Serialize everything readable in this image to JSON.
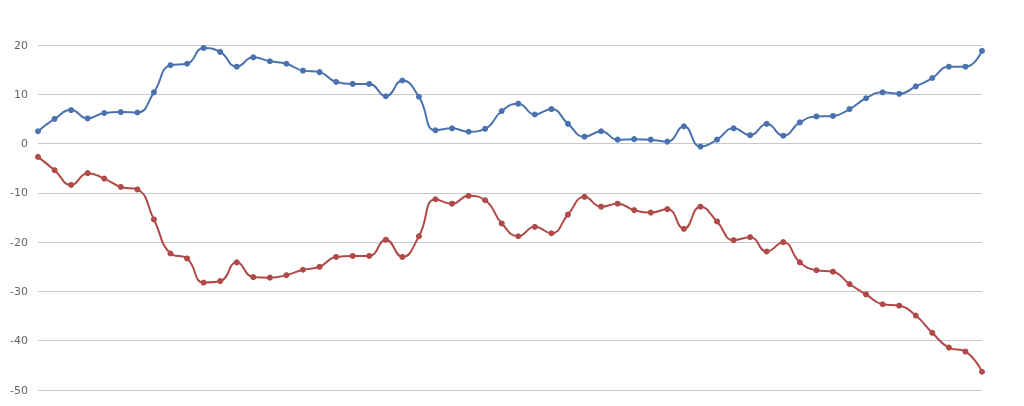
{
  "chart_data": {
    "type": "line",
    "categories": [
      null,
      null,
      null,
      null,
      null,
      null,
      null,
      null,
      null,
      null,
      null,
      null,
      null,
      null,
      null,
      null,
      null,
      null,
      null,
      null,
      null,
      null,
      null,
      null,
      null,
      null,
      null,
      null,
      null,
      null,
      null,
      null,
      null,
      null,
      null,
      null,
      null,
      null,
      null,
      null,
      null,
      null,
      null,
      null,
      null,
      null,
      null,
      null,
      null,
      null,
      null,
      null,
      null,
      null,
      null,
      null,
      null,
      null
    ],
    "series": [
      {
        "color": "#4a72ae",
        "values": [
          2.5,
          5.0,
          6.8,
          5.1,
          6.2,
          6.4,
          6.3,
          10.4,
          15.9,
          16.2,
          19.4,
          18.6,
          15.6,
          17.5,
          16.7,
          16.2,
          14.8,
          14.5,
          12.5,
          12.1,
          12.1,
          9.6,
          12.8,
          9.5,
          2.7,
          3.1,
          2.4,
          3.0,
          6.6,
          8.1,
          5.9,
          7.0,
          4.0,
          1.4,
          2.5,
          0.8,
          0.9,
          0.8,
          0.4,
          3.5,
          -0.6,
          0.8,
          3.1,
          1.7,
          4.0,
          1.6,
          4.3,
          5.5,
          5.6,
          7.0,
          9.2,
          10.4,
          10.1,
          11.6,
          13.3,
          15.6,
          15.6,
          18.8
        ]
      },
      {
        "color": "#b04a48",
        "values": [
          -2.7,
          -5.4,
          -8.4,
          -6.0,
          -7.1,
          -8.8,
          -9.3,
          -15.4,
          -22.3,
          -23.3,
          -28.2,
          -27.9,
          -24.1,
          -27.1,
          -27.2,
          -26.7,
          -25.6,
          -25.0,
          -23.0,
          -22.8,
          -22.8,
          -19.5,
          -23.0,
          -18.8,
          -11.3,
          -12.2,
          -10.6,
          -11.5,
          -16.2,
          -18.8,
          -16.9,
          -18.2,
          -14.4,
          -10.8,
          -12.8,
          -12.2,
          -13.5,
          -14.0,
          -13.3,
          -17.3,
          -12.8,
          -15.8,
          -19.6,
          -19.0,
          -21.9,
          -20.0,
          -24.1,
          -25.7,
          -26.0,
          -28.5,
          -30.6,
          -32.6,
          -32.9,
          -34.9,
          -38.4,
          -41.4,
          -42.2,
          -46.3
        ]
      }
    ],
    "ylim": [
      -50,
      20
    ],
    "yticks": [
      -50,
      -40,
      -30,
      -20,
      -10,
      0,
      10,
      20
    ],
    "grid": "y",
    "marker": "circle",
    "line_style": "solid",
    "tick_labels": "y"
  }
}
